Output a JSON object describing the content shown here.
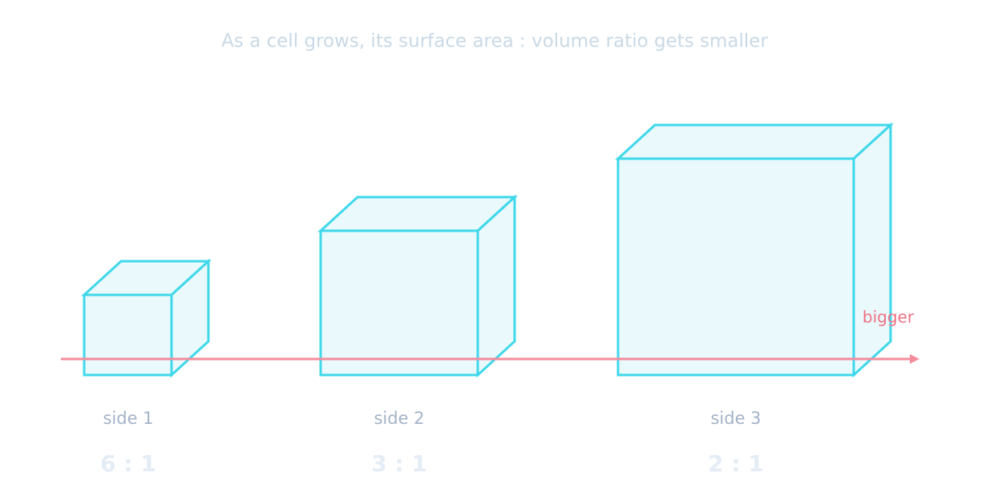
{
  "title": "As a cell grows, its surface area : volume ratio gets smaller",
  "arrow_label": "bigger",
  "cubes": [
    {
      "label": "side 1",
      "ratio": "6 : 1"
    },
    {
      "label": "side 2",
      "ratio": "3 : 1"
    },
    {
      "label": "side 3",
      "ratio": "2 : 1"
    }
  ]
}
